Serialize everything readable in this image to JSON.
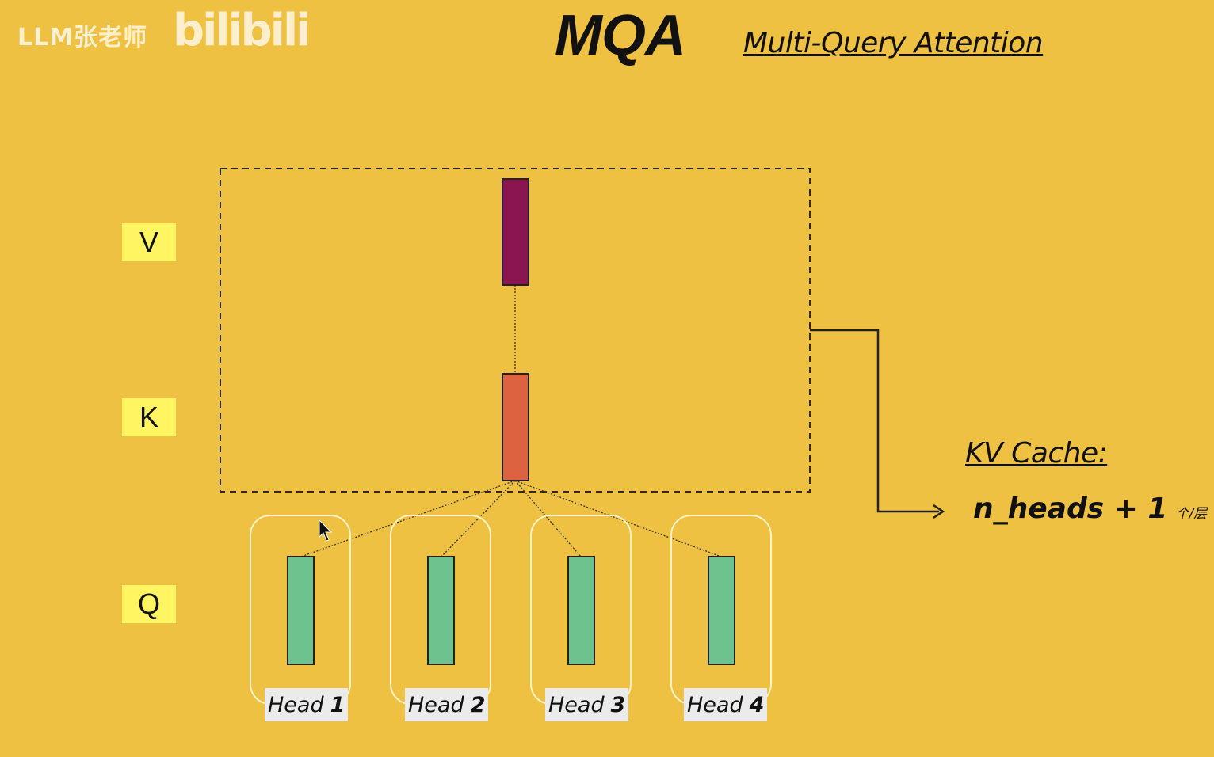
{
  "watermark": {
    "channel": "LLM张老师",
    "logo": "bilibili"
  },
  "header": {
    "title": "MQA",
    "subtitle": "Multi-Query Attention"
  },
  "rows": {
    "v": "V",
    "k": "K",
    "q": "Q"
  },
  "heads": [
    {
      "word": "Head",
      "num": "1"
    },
    {
      "word": "Head",
      "num": "2"
    },
    {
      "word": "Head",
      "num": "3"
    },
    {
      "word": "Head",
      "num": "4"
    }
  ],
  "kv_cache": {
    "title": "KV Cache:",
    "formula": "n_heads + 1",
    "unit": "个/层"
  },
  "colors": {
    "background": "#EFC143",
    "v_block": "#8A1550",
    "k_block": "#DD6340",
    "q_block": "#6EC28E",
    "row_label": "#FFF461"
  },
  "icons": {
    "cursor": "mouse-pointer-icon",
    "arrow": "arrow-right-icon"
  }
}
